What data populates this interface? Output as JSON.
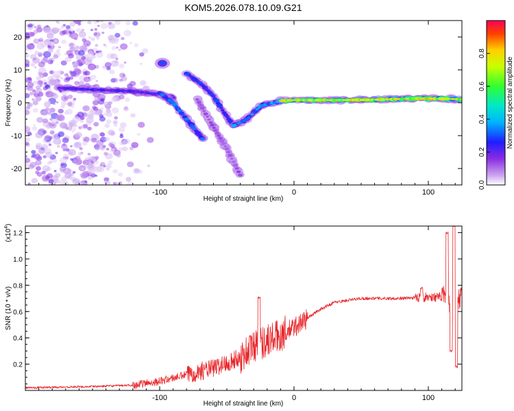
{
  "title": "KOM5.2026.078.10.09.G21",
  "chart_data": [
    {
      "type": "heatmap",
      "name": "spectrogram",
      "xlabel": "Height of straight line (km)",
      "ylabel": "Frequency (Hz)",
      "xlim": [
        -200,
        125
      ],
      "ylim": [
        -25,
        25
      ],
      "xticks": [
        -100,
        0,
        100
      ],
      "yticks": [
        -20,
        -10,
        0,
        10,
        20
      ],
      "colorbar": {
        "label": "Normalized spectral amplitude",
        "range": [
          0,
          1
        ],
        "ticks": [
          "0.0",
          "0.2",
          "0.4",
          "0.6",
          "0.8"
        ],
        "tick_values": [
          0.0,
          0.2,
          0.4,
          0.6,
          0.8
        ]
      },
      "tracks": [
        {
          "name": "main-horizontal-track",
          "points": [
            [
              -175,
              4.5
            ],
            [
              -150,
              4
            ],
            [
              -120,
              3.5
            ],
            [
              -100,
              2.5
            ],
            [
              -90,
              1.5
            ]
          ],
          "amplitude": 0.25
        },
        {
          "name": "descending-track-1",
          "points": [
            [
              -100,
              3
            ],
            [
              -90,
              0
            ],
            [
              -80,
              -5
            ],
            [
              -68,
              -11
            ]
          ],
          "amplitude": 0.35
        },
        {
          "name": "descending-track-2",
          "points": [
            [
              -80,
              9
            ],
            [
              -70,
              6
            ],
            [
              -60,
              2
            ],
            [
              -52,
              -3
            ],
            [
              -45,
              -7
            ]
          ],
          "amplitude": 0.3
        },
        {
          "name": "descending-track-3",
          "points": [
            [
              -72,
              1
            ],
            [
              -62,
              -6
            ],
            [
              -50,
              -14
            ],
            [
              -40,
              -22
            ]
          ],
          "amplitude": 0.15
        },
        {
          "name": "rising-segment",
          "points": [
            [
              -45,
              -7
            ],
            [
              -35,
              -5
            ],
            [
              -25,
              -1
            ],
            [
              -10,
              0.5
            ]
          ],
          "amplitude": 0.4
        },
        {
          "name": "stable-track",
          "points": [
            [
              -10,
              0.6
            ],
            [
              0,
              0.8
            ],
            [
              30,
              0.8
            ],
            [
              60,
              0.9
            ],
            [
              90,
              1.3
            ],
            [
              115,
              1.2
            ],
            [
              125,
              1.0
            ]
          ],
          "amplitude": 0.85
        },
        {
          "name": "isolated-blob",
          "points": [
            [
              -98,
              12
            ]
          ],
          "amplitude": 0.3
        }
      ]
    },
    {
      "type": "line",
      "name": "snr",
      "xlabel": "Height of straight line (km)",
      "ylabel": "SNR (10 * v/v)",
      "y_multiplier_label": "(x10",
      "y_multiplier_exp": "4",
      "y_multiplier_close": ")",
      "xlim": [
        -200,
        125
      ],
      "ylim": [
        0,
        1.25
      ],
      "xticks": [
        -100,
        0,
        100
      ],
      "yticks": [
        0.2,
        0.4,
        0.6,
        0.8,
        1.0,
        1.2
      ],
      "ytick_labels": [
        "0.2",
        "0.4",
        "0.6",
        "0.8",
        "1.0",
        "1.2"
      ],
      "color": "#e8262a",
      "trend": {
        "x": [
          -200,
          -150,
          -120,
          -100,
          -80,
          -60,
          -40,
          -30,
          -20,
          -10,
          0,
          10,
          20,
          30,
          50,
          80,
          100,
          110,
          115,
          117,
          119,
          121,
          125
        ],
        "y": [
          0.02,
          0.03,
          0.04,
          0.07,
          0.12,
          0.17,
          0.25,
          0.34,
          0.38,
          0.42,
          0.48,
          0.55,
          0.62,
          0.67,
          0.7,
          0.7,
          0.71,
          0.71,
          0.7,
          0.45,
          0.78,
          0.7,
          0.7
        ]
      },
      "peaks": [
        {
          "x": -26,
          "y": 0.71
        },
        {
          "x": 95,
          "y": 0.78
        },
        {
          "x": 114,
          "y": 1.2
        },
        {
          "x": 117,
          "y": 0.3
        },
        {
          "x": 119,
          "y": 1.25
        },
        {
          "x": 121,
          "y": 0.18
        }
      ]
    }
  ]
}
